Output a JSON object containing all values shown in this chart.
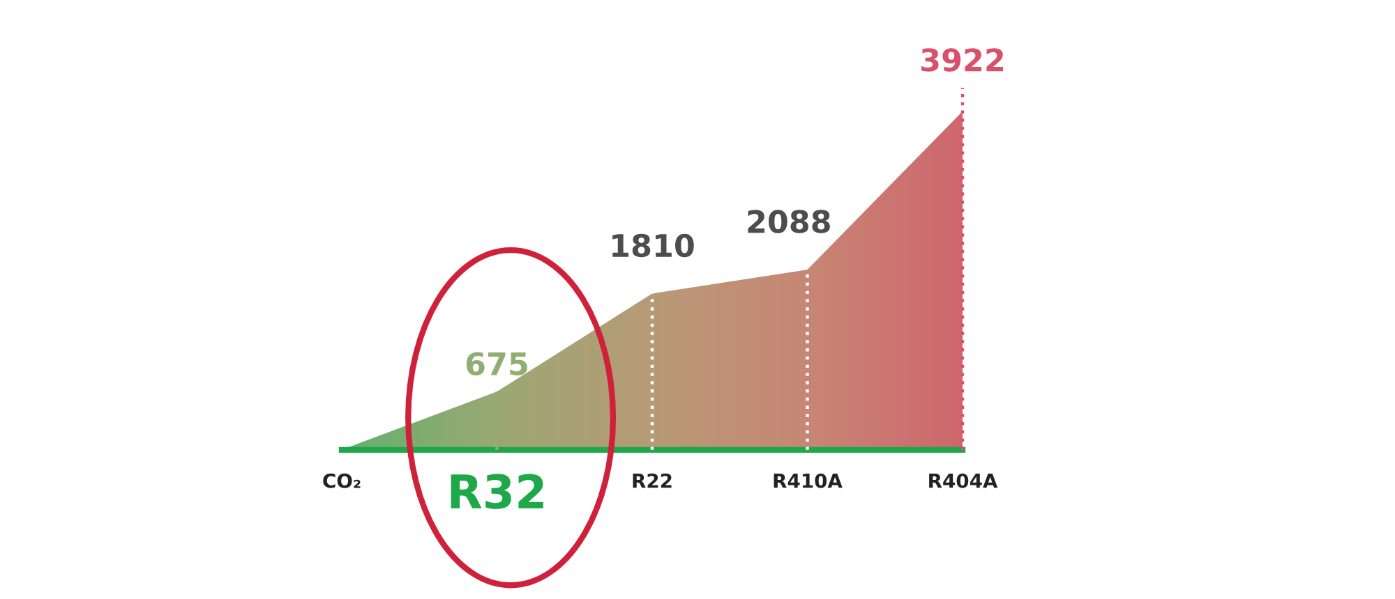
{
  "chart_data": {
    "type": "area",
    "categories": [
      "CO₂",
      "R32",
      "R22",
      "R410A",
      "R404A"
    ],
    "values": [
      0,
      675,
      1810,
      2088,
      3922
    ],
    "value_labels": [
      null,
      "675",
      "1810",
      "2088",
      "3922"
    ],
    "colors": [
      "#3dbb6b",
      "#8fae72",
      "#b89a78",
      "#cd7e74",
      "#d9506a"
    ],
    "line_style": "dotted",
    "grid": false,
    "legend": false
  }
}
